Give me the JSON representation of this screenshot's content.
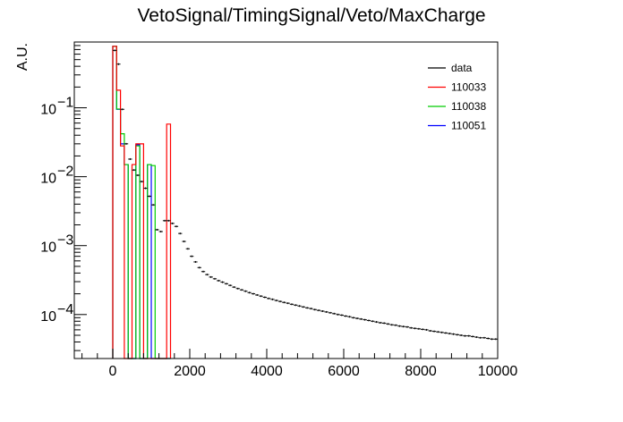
{
  "chart_data": {
    "type": "histogram",
    "title": "VetoSignal/TimingSignal/Veto/MaxCharge",
    "xlabel": "",
    "ylabel": "A.U.",
    "xlim": [
      -1000,
      10000
    ],
    "ylim": [
      2.3e-05,
      0.9
    ],
    "yscale": "log",
    "grid": false,
    "legend_position": "top-right",
    "x_ticks": [
      {
        "value": 0,
        "label": "0"
      },
      {
        "value": 2000,
        "label": "2000"
      },
      {
        "value": 4000,
        "label": "4000"
      },
      {
        "value": 6000,
        "label": "6000"
      },
      {
        "value": 8000,
        "label": "8000"
      },
      {
        "value": 10000,
        "label": "10000"
      }
    ],
    "y_ticks": [
      {
        "value": 0.1,
        "mantissa": "10",
        "exponent": "−1"
      },
      {
        "value": 0.01,
        "mantissa": "10",
        "exponent": "−2"
      },
      {
        "value": 0.001,
        "mantissa": "10",
        "exponent": "−3"
      },
      {
        "value": 0.0001,
        "mantissa": "10",
        "exponent": "−4"
      }
    ],
    "series": [
      {
        "name": "data",
        "style": "markers",
        "color": "#000000",
        "bin_width": 100,
        "x": [
          50,
          150,
          250,
          350,
          450,
          550,
          650,
          750,
          850,
          950,
          1050,
          1150,
          1250,
          1350,
          1450,
          1550,
          1650,
          1750,
          1850,
          1950,
          2050,
          2150,
          2250,
          2350,
          2450,
          2550,
          2650,
          2750,
          2850,
          2950,
          3050,
          3150,
          3250,
          3350,
          3450,
          3550,
          3650,
          3750,
          3850,
          3950,
          4050,
          4150,
          4250,
          4350,
          4450,
          4550,
          4650,
          4750,
          4850,
          4950,
          5050,
          5150,
          5250,
          5350,
          5450,
          5550,
          5650,
          5750,
          5850,
          5950,
          6050,
          6150,
          6250,
          6350,
          6450,
          6550,
          6650,
          6750,
          6850,
          6950,
          7050,
          7150,
          7250,
          7350,
          7450,
          7550,
          7650,
          7750,
          7850,
          7950,
          8050,
          8150,
          8250,
          8350,
          8450,
          8550,
          8650,
          8750,
          8850,
          8950,
          9050,
          9150,
          9250,
          9350,
          9450,
          9550,
          9650,
          9750,
          9850,
          9950
        ],
        "y": [
          0.68,
          0.43,
          0.095,
          0.03,
          0.018,
          0.0125,
          0.0105,
          0.0085,
          0.0068,
          0.0052,
          0.0039,
          0.0017,
          0.0016,
          0.0023,
          0.0023,
          0.0021,
          0.0019,
          0.0015,
          0.00115,
          0.0009,
          0.0007,
          0.00058,
          0.00048,
          0.00042,
          0.00038,
          0.00035,
          0.00033,
          0.00031,
          0.000295,
          0.00028,
          0.000265,
          0.00025,
          0.000238,
          0.000228,
          0.000218,
          0.000208,
          0.0002,
          0.000192,
          0.000185,
          0.000178,
          0.000171,
          0.000166,
          0.00016,
          0.000155,
          0.00015,
          0.000146,
          0.000141,
          0.000137,
          0.000133,
          0.000129,
          0.000125,
          0.000122,
          0.000118,
          0.000115,
          0.000112,
          0.000109,
          0.000106,
          0.000103,
          0.0001,
          9.8e-05,
          9.5e-05,
          9.3e-05,
          9e-05,
          8.8e-05,
          8.6e-05,
          8.4e-05,
          8.2e-05,
          8e-05,
          7.8e-05,
          7.6e-05,
          7.5e-05,
          7.3e-05,
          7.1e-05,
          7e-05,
          6.8e-05,
          6.7e-05,
          6.6e-05,
          6.4e-05,
          6.3e-05,
          6.2e-05,
          6.1e-05,
          6e-05,
          5.8e-05,
          5.7e-05,
          5.6e-05,
          5.5e-05,
          5.4e-05,
          5.3e-05,
          5.2e-05,
          5.1e-05,
          5e-05,
          4.9e-05,
          4.9e-05,
          4.8e-05,
          4.7e-05,
          4.6e-05,
          4.6e-05,
          4.5e-05,
          4.4e-05,
          4.4e-05
        ]
      },
      {
        "name": "110033",
        "style": "histogram",
        "color": "#ff0000",
        "x_edges": [
          0,
          100,
          200,
          300,
          400,
          500,
          600,
          700,
          800,
          900,
          1000,
          1100,
          1200,
          1300,
          1400,
          1500
        ],
        "y": [
          0.78,
          0.18,
          0.028,
          0,
          0,
          0.015,
          0.03,
          0.03,
          0,
          0,
          0,
          0,
          0,
          0,
          0.058
        ]
      },
      {
        "name": "110038",
        "style": "histogram",
        "color": "#00cc00",
        "x_edges": [
          0,
          100,
          200,
          300,
          400,
          500,
          600,
          700,
          800,
          900,
          1000,
          1100,
          1200,
          1300,
          1400,
          1500
        ],
        "y": [
          0.78,
          0.096,
          0.042,
          0.015,
          0,
          0,
          0.028,
          0,
          0,
          0.015,
          0.0145,
          0,
          0,
          0,
          0
        ]
      },
      {
        "name": "110051",
        "style": "histogram",
        "color": "#0000ff",
        "x_edges": [
          0,
          100,
          200,
          300,
          400,
          500,
          600,
          700,
          800,
          900,
          1000,
          1100,
          1200,
          1300,
          1400,
          1500
        ],
        "y": [
          0.78,
          0.095,
          0.03,
          0.015,
          0,
          0,
          0.029,
          0,
          0,
          0.015,
          0,
          0,
          0,
          0,
          0
        ]
      }
    ]
  }
}
